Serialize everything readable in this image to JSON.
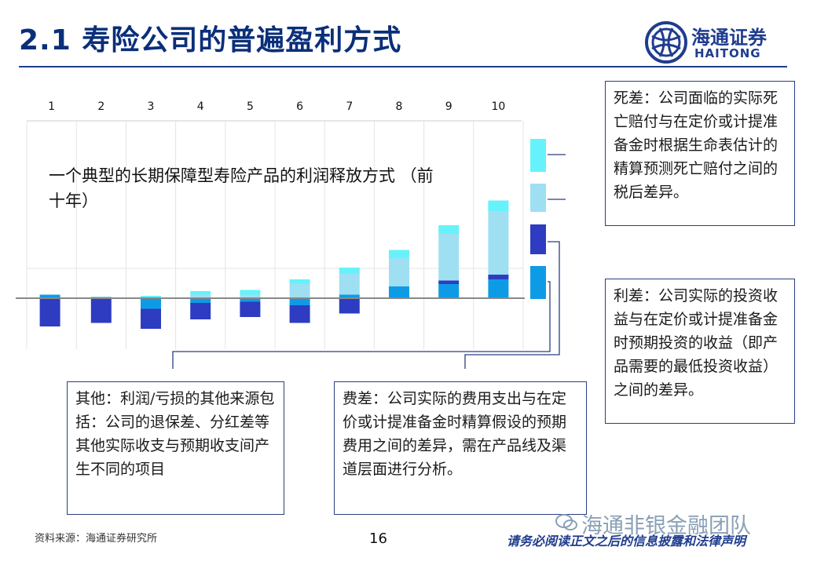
{
  "header": {
    "title": "2.1 寿险公司的普遍盈利方式",
    "logo_cn": "海通证券",
    "logo_en": "HAITONG"
  },
  "colors": {
    "navy": "#1f3d8f",
    "mortality": "#66f2fa",
    "expense": "#9fdff2",
    "interest": "#2e3cc1",
    "other": "#0e9be6"
  },
  "description": "一个典型的长期保障型寿险产品的利润释放方式 （前十年）",
  "callouts": {
    "mortality": "死差：公司面临的实际死亡赔付与在定价或计提准备金时根据生命表估计的精算预测死亡赔付之间的税后差异。",
    "interest": "利差：公司实际的投资收益与在定价或计提准备金时预期投资的收益（即产品需要的最低投资收益）之间的差异。",
    "expense": "费差：公司实际的费用支出与在定价或计提准备金时精算假设的预期费用之间的差异，需在产品线及渠道层面进行分析。",
    "other": "其他：利润/亏损的其他来源包括：公司的退保差、分红差等其他实际收支与预期收支间产生不同的项目"
  },
  "footer": {
    "source": "资料来源：海通证券研究所",
    "page": "16",
    "disclaimer": "请务必阅读正文之后的信息披露和法律声明",
    "watermark": "海通非银金融团队"
  },
  "chart_data": {
    "type": "bar",
    "categories": [
      "1",
      "2",
      "3",
      "4",
      "5",
      "6",
      "7",
      "8",
      "9",
      "10"
    ],
    "series": [
      {
        "key": "other",
        "values": [
          3,
          1,
          -9,
          -4,
          -3,
          -6,
          3,
          10,
          12,
          16
        ]
      },
      {
        "key": "interest",
        "values": [
          -24,
          -21,
          -17,
          -14,
          -13,
          -15,
          -13,
          0,
          3,
          4
        ]
      },
      {
        "key": "expense",
        "values": [
          0,
          0,
          0,
          3,
          3,
          12,
          18,
          24,
          40,
          54
        ]
      },
      {
        "key": "mortality",
        "values": [
          0,
          0,
          2,
          3,
          4,
          4,
          5,
          7,
          7,
          9
        ]
      }
    ],
    "legend_colors": [
      "mortality",
      "expense",
      "interest",
      "other"
    ]
  }
}
